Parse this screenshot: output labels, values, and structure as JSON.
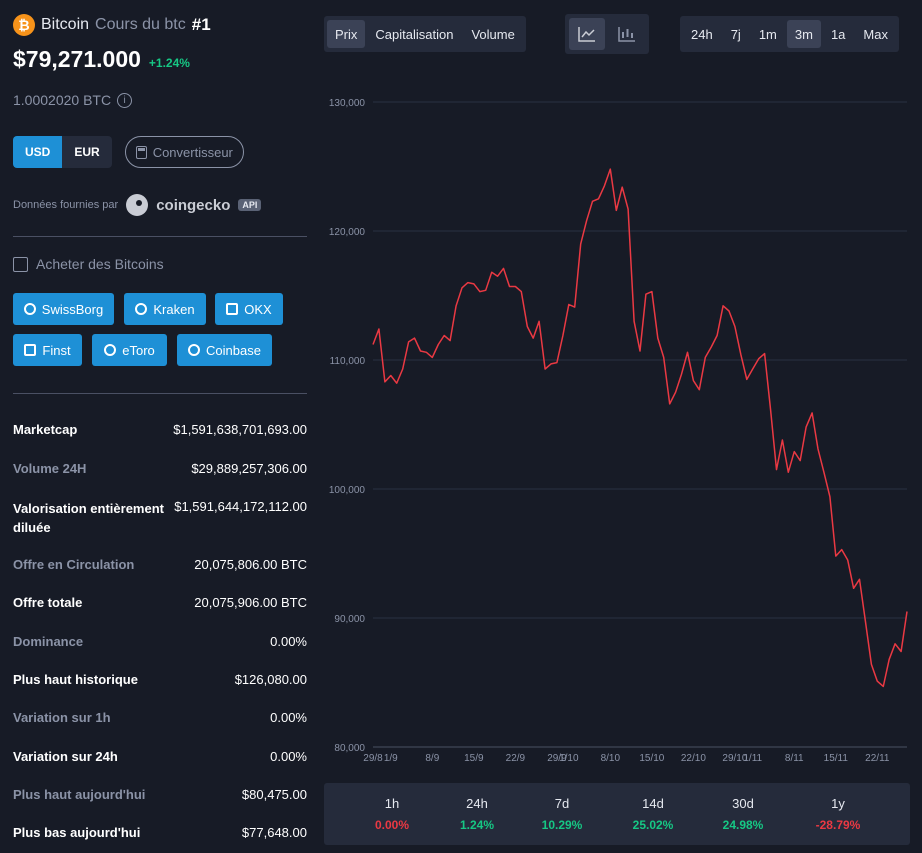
{
  "coin": {
    "logo_symbol": "₿",
    "name": "Bitcoin",
    "subtitle": "Cours du btc",
    "rank": "#1",
    "price": "$79,271.000",
    "change": "+1.24%",
    "btc_value": "1.0002020 BTC",
    "info_icon": "i"
  },
  "currency": {
    "usd": "USD",
    "eur": "EUR",
    "selected": "USD",
    "converter": "Convertisseur"
  },
  "provider": {
    "label": "Données fournies par",
    "name": "coingecko",
    "badge": "API"
  },
  "buy": {
    "title": "Acheter des Bitcoins",
    "exchanges": [
      "SwissBorg",
      "Kraken",
      "OKX",
      "Finst",
      "eToro",
      "Coinbase"
    ]
  },
  "stats": [
    {
      "label": "Marketcap",
      "value": "$1,591,638,701,693.00"
    },
    {
      "label": "Volume 24H",
      "value": "$29,889,257,306.00"
    },
    {
      "label": "Valorisation entièrement diluée",
      "value": "$1,591,644,172,112.00"
    },
    {
      "label": "Offre en Circulation",
      "value": "20,075,806.00 BTC"
    },
    {
      "label": "Offre totale",
      "value": "20,075,906.00 BTC"
    },
    {
      "label": "Dominance",
      "value": "0.00%"
    },
    {
      "label": "Plus haut historique",
      "value": "$126,080.00"
    },
    {
      "label": "Variation sur 1h",
      "value": "0.00%"
    },
    {
      "label": "Variation sur 24h",
      "value": "0.00%"
    },
    {
      "label": "Plus haut aujourd'hui",
      "value": "$80,475.00"
    },
    {
      "label": "Plus bas aujourd'hui",
      "value": "$77,648.00"
    }
  ],
  "tabs": {
    "metrics": [
      "Prix",
      "Capitalisation",
      "Volume"
    ],
    "metric_selected": "Prix",
    "chart_types": [
      "line-chart-icon",
      "candlestick-icon"
    ],
    "chart_type_selected": "line-chart-icon",
    "ranges": [
      "24h",
      "7j",
      "1m",
      "3m",
      "1a",
      "Max"
    ],
    "range_selected": "3m"
  },
  "performance": [
    {
      "label": "1h",
      "value": "0.00%"
    },
    {
      "label": "24h",
      "value": "1.24%"
    },
    {
      "label": "7d",
      "value": "10.29%"
    },
    {
      "label": "14d",
      "value": "25.02%"
    },
    {
      "label": "30d",
      "value": "24.98%"
    },
    {
      "label": "1y",
      "value": "-28.79%"
    }
  ],
  "colors": {
    "background": "#171b26",
    "panel": "#252b3b",
    "accent": "#1e90d6",
    "line": "#ea3943",
    "positive": "#16c784",
    "negative": "#ea3943",
    "bitcoin": "#f7931a"
  },
  "chart_data": {
    "type": "line",
    "ylim": [
      80000,
      130000
    ],
    "yticks": [
      80000,
      90000,
      100000,
      110000,
      120000,
      130000
    ],
    "ytick_labels": [
      "80,000",
      "90,000",
      "100,000",
      "110,000",
      "120,000",
      "130,000"
    ],
    "xtick_labels": [
      "29/8",
      "1/9",
      "8/9",
      "15/9",
      "22/9",
      "29/9",
      "1/10",
      "8/10",
      "15/10",
      "22/10",
      "29/10",
      "1/11",
      "8/11",
      "15/11",
      "22/11"
    ],
    "xtick_positions": [
      0,
      3,
      10,
      17,
      24,
      31,
      33,
      40,
      47,
      54,
      61,
      64,
      71,
      78,
      85
    ],
    "grid": true,
    "series": [
      {
        "color": "#ea3943",
        "x": [
          0,
          1,
          2,
          3,
          4,
          5,
          6,
          7,
          8,
          9,
          10,
          11,
          12,
          13,
          14,
          15,
          16,
          17,
          18,
          19,
          20,
          21,
          22,
          23,
          24,
          25,
          26,
          27,
          28,
          29,
          30,
          31,
          32,
          33,
          34,
          35,
          36,
          37,
          38,
          39,
          40,
          41,
          42,
          43,
          44,
          45,
          46,
          47,
          48,
          49,
          50,
          51,
          52,
          53,
          54,
          55,
          56,
          57,
          58,
          59,
          60,
          61,
          62,
          63,
          64,
          65,
          66,
          67,
          68,
          69,
          70,
          71,
          72,
          73,
          74,
          75,
          76,
          77,
          78,
          79,
          80,
          81,
          82,
          83,
          84,
          85,
          86,
          87,
          88,
          89,
          90
        ],
        "values": [
          111200,
          112400,
          108300,
          108800,
          108200,
          109300,
          111400,
          111700,
          110700,
          110600,
          110200,
          111200,
          111900,
          111500,
          114200,
          115600,
          116000,
          115900,
          115300,
          115400,
          116800,
          116500,
          117100,
          115700,
          115700,
          115300,
          112600,
          111700,
          113000,
          109300,
          109700,
          109800,
          111900,
          114300,
          114100,
          119000,
          120800,
          122300,
          122500,
          123500,
          124800,
          121600,
          123400,
          121700,
          113000,
          110700,
          115100,
          115300,
          111700,
          110200,
          106600,
          107500,
          108900,
          110600,
          108400,
          107700,
          110200,
          111000,
          111900,
          114200,
          113800,
          112600,
          110400,
          108500,
          109300,
          110100,
          110500,
          106200,
          101500,
          103800,
          101300,
          102900,
          102200,
          104800,
          105900,
          103100,
          101300,
          99400,
          94800,
          95300,
          94500,
          92300,
          93000,
          89700,
          86400,
          85100,
          84700,
          86800,
          88000,
          87400,
          90500
        ]
      }
    ]
  }
}
